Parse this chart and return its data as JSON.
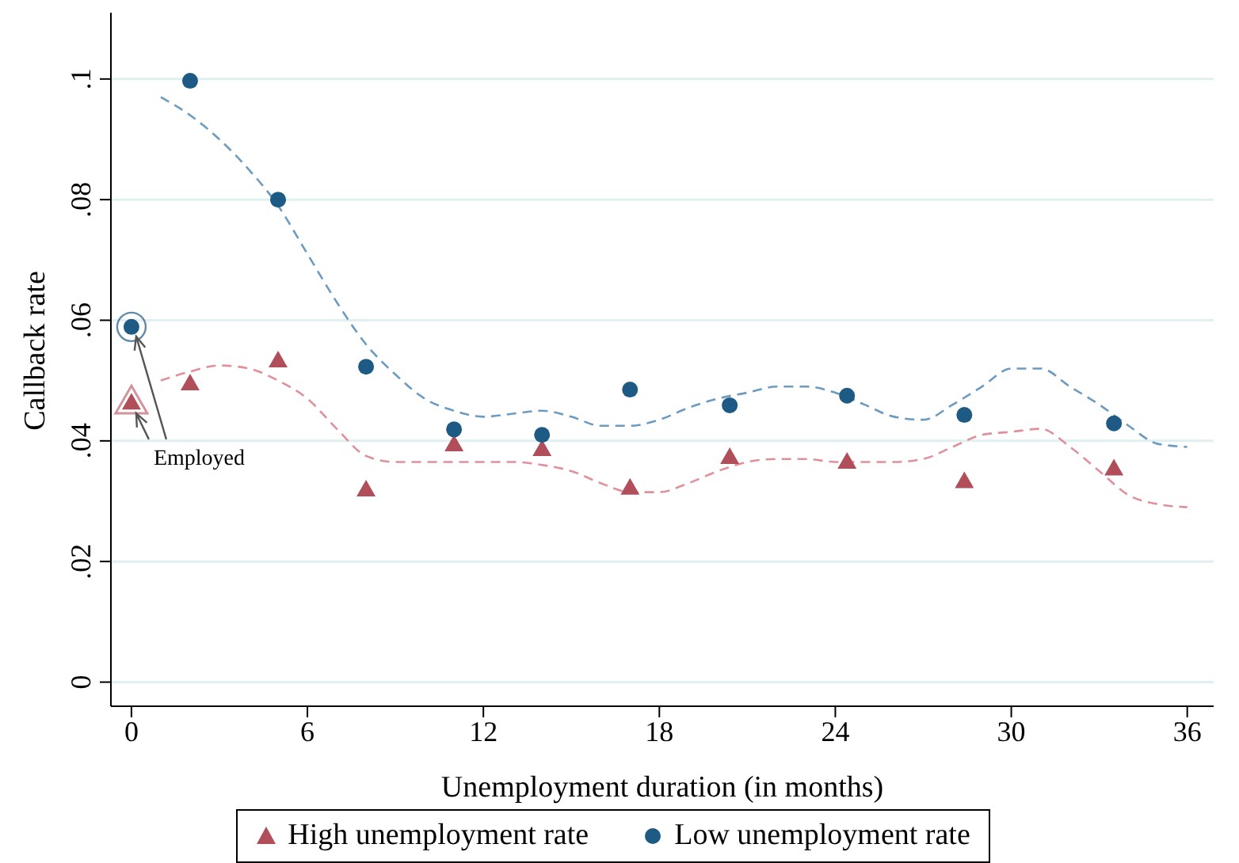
{
  "chart_data": {
    "type": "scatter",
    "xlabel": "Unemployment duration (in months)",
    "ylabel": "Callback rate",
    "xlim": [
      -0.7,
      36.9
    ],
    "ylim": [
      -0.004,
      0.111
    ],
    "xticks": [
      0,
      6,
      12,
      18,
      24,
      30,
      36
    ],
    "yticks": [
      {
        "value": 0,
        "label": "0"
      },
      {
        "value": 0.02,
        "label": ".02"
      },
      {
        "value": 0.04,
        "label": ".04"
      },
      {
        "value": 0.06,
        "label": ".06"
      },
      {
        "value": 0.08,
        "label": ".08"
      },
      {
        "value": 0.1,
        "label": ".1"
      }
    ],
    "grid": "y",
    "legend": "bottom",
    "annotations": [
      {
        "text": "Employed",
        "x": 0,
        "y": 0.0589
      }
    ],
    "series": [
      {
        "name": "High unemployment rate",
        "color": "#b04e5a",
        "marker": "triangle",
        "x": [
          2,
          5,
          8,
          11,
          14,
          17,
          20.4,
          24.4,
          28.4,
          33.5
        ],
        "values": [
          0.0493,
          0.0531,
          0.0317,
          0.0392,
          0.0384,
          0.032,
          0.0371,
          0.0363,
          0.0331,
          0.0352
        ]
      },
      {
        "name": "Low unemployment rate",
        "color": "#1d5a84",
        "marker": "circle",
        "x": [
          2,
          5,
          8,
          11,
          14,
          17,
          20.4,
          24.4,
          28.4,
          33.5
        ],
        "values": [
          0.0997,
          0.08,
          0.0523,
          0.0419,
          0.041,
          0.0485,
          0.0459,
          0.0475,
          0.0443,
          0.0429
        ]
      },
      {
        "color": "#b04e5a",
        "marker": "triangle",
        "x": [
          0
        ],
        "values": [
          0.0461
        ]
      },
      {
        "color": "#1d5a84",
        "marker": "circle",
        "x": [
          0
        ],
        "values": [
          0.0589
        ]
      },
      {
        "type": "line",
        "color": "#e0909a",
        "line_style": "dashed",
        "marker": "none",
        "x": [
          1,
          2,
          3,
          4,
          5,
          6,
          7,
          8,
          9,
          10,
          11,
          12,
          13,
          14,
          15,
          16,
          17,
          18,
          19,
          20,
          21,
          22,
          23,
          24,
          25,
          26,
          27,
          28,
          29,
          30,
          31,
          32,
          33,
          34,
          35,
          36
        ],
        "values": [
          0.05,
          0.0515,
          0.0525,
          0.052,
          0.05,
          0.047,
          0.042,
          0.0375,
          0.0365,
          0.0365,
          0.0365,
          0.0365,
          0.0365,
          0.036,
          0.035,
          0.033,
          0.0315,
          0.0315,
          0.033,
          0.035,
          0.0365,
          0.037,
          0.037,
          0.0365,
          0.0365,
          0.0365,
          0.037,
          0.039,
          0.041,
          0.0415,
          0.042,
          0.039,
          0.035,
          0.031,
          0.0295,
          0.029
        ]
      },
      {
        "type": "line",
        "color": "#6b9bc0",
        "line_style": "dashed",
        "marker": "none",
        "x": [
          1,
          2,
          3,
          4,
          5,
          6,
          7,
          8,
          9,
          10,
          11,
          12,
          13,
          14,
          15,
          16,
          17,
          18,
          19,
          20,
          21,
          22,
          23,
          24,
          25,
          26,
          27,
          28,
          29,
          30,
          31,
          32,
          33,
          34,
          35,
          36
        ],
        "values": [
          0.097,
          0.094,
          0.09,
          0.085,
          0.079,
          0.071,
          0.063,
          0.056,
          0.051,
          0.047,
          0.045,
          0.044,
          0.0445,
          0.045,
          0.044,
          0.0425,
          0.0425,
          0.0435,
          0.0455,
          0.047,
          0.048,
          0.049,
          0.049,
          0.048,
          0.046,
          0.044,
          0.0435,
          0.046,
          0.049,
          0.052,
          0.052,
          0.049,
          0.046,
          0.0425,
          0.0395,
          0.039
        ]
      }
    ]
  }
}
